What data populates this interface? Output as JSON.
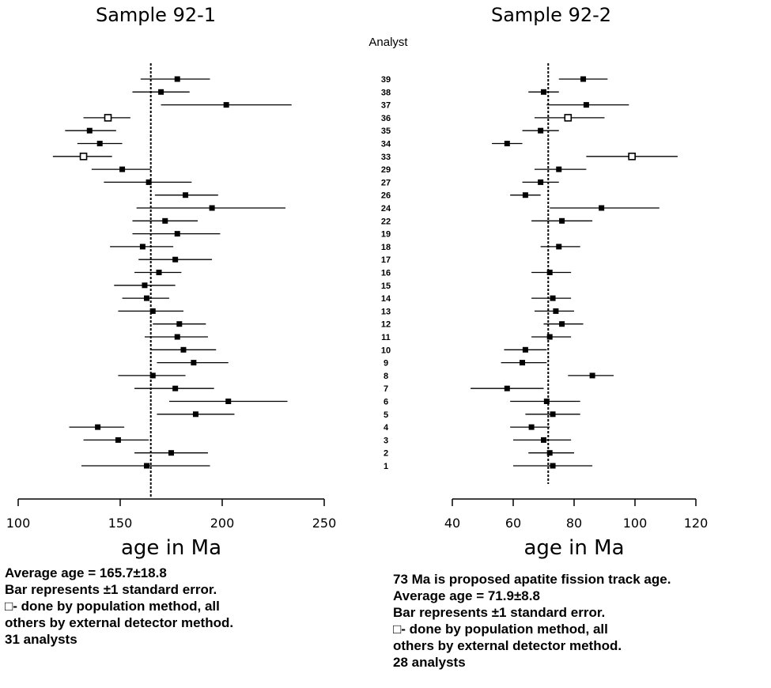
{
  "chart_data": [
    {
      "type": "scatter",
      "title": "Sample 92-1",
      "xlabel": "age in Ma",
      "xlim": [
        100,
        250
      ],
      "xticks": [
        "100",
        "150",
        "200",
        "250"
      ],
      "reference_line": 165,
      "points": [
        {
          "analyst": "39",
          "x": 178,
          "low": 160,
          "high": 194,
          "method": "external"
        },
        {
          "analyst": "38",
          "x": 170,
          "low": 156,
          "high": 184,
          "method": "external"
        },
        {
          "analyst": "37",
          "x": 202,
          "low": 170,
          "high": 234,
          "method": "external"
        },
        {
          "analyst": "36",
          "x": 144,
          "low": 132,
          "high": 155,
          "method": "population"
        },
        {
          "analyst": "35",
          "x": 135,
          "low": 123,
          "high": 148,
          "method": "external"
        },
        {
          "analyst": "34",
          "x": 140,
          "low": 129,
          "high": 151,
          "method": "external"
        },
        {
          "analyst": "33",
          "x": 132,
          "low": 117,
          "high": 146,
          "method": "population"
        },
        {
          "analyst": "29",
          "x": 151,
          "low": 136,
          "high": 165,
          "method": "external"
        },
        {
          "analyst": "27",
          "x": 164,
          "low": 142,
          "high": 185,
          "method": "external"
        },
        {
          "analyst": "26",
          "x": 182,
          "low": 167,
          "high": 198,
          "method": "external"
        },
        {
          "analyst": "24",
          "x": 195,
          "low": 158,
          "high": 231,
          "method": "external"
        },
        {
          "analyst": "22",
          "x": 172,
          "low": 156,
          "high": 188,
          "method": "external"
        },
        {
          "analyst": "19",
          "x": 178,
          "low": 156,
          "high": 199,
          "method": "external"
        },
        {
          "analyst": "18",
          "x": 161,
          "low": 145,
          "high": 176,
          "method": "external"
        },
        {
          "analyst": "17",
          "x": 177,
          "low": 159,
          "high": 195,
          "method": "external"
        },
        {
          "analyst": "16",
          "x": 169,
          "low": 157,
          "high": 180,
          "method": "external"
        },
        {
          "analyst": "15",
          "x": 162,
          "low": 147,
          "high": 177,
          "method": "external"
        },
        {
          "analyst": "14",
          "x": 163,
          "low": 151,
          "high": 174,
          "method": "external"
        },
        {
          "analyst": "13",
          "x": 166,
          "low": 149,
          "high": 181,
          "method": "external"
        },
        {
          "analyst": "12",
          "x": 179,
          "low": 166,
          "high": 192,
          "method": "external"
        },
        {
          "analyst": "11",
          "x": 178,
          "low": 162,
          "high": 193,
          "method": "external"
        },
        {
          "analyst": "10",
          "x": 181,
          "low": 165,
          "high": 197,
          "method": "external"
        },
        {
          "analyst": "9",
          "x": 186,
          "low": 168,
          "high": 203,
          "method": "external"
        },
        {
          "analyst": "8",
          "x": 166,
          "low": 149,
          "high": 182,
          "method": "external"
        },
        {
          "analyst": "7",
          "x": 177,
          "low": 157,
          "high": 196,
          "method": "external"
        },
        {
          "analyst": "6",
          "x": 203,
          "low": 174,
          "high": 232,
          "method": "external"
        },
        {
          "analyst": "5",
          "x": 187,
          "low": 168,
          "high": 206,
          "method": "external"
        },
        {
          "analyst": "4",
          "x": 139,
          "low": 125,
          "high": 152,
          "method": "external"
        },
        {
          "analyst": "3",
          "x": 149,
          "low": 132,
          "high": 164,
          "method": "external"
        },
        {
          "analyst": "2",
          "x": 175,
          "low": 157,
          "high": 193,
          "method": "external"
        },
        {
          "analyst": "1",
          "x": 163,
          "low": 131,
          "high": 194,
          "method": "external"
        }
      ]
    },
    {
      "type": "scatter",
      "title": "Sample 92-2",
      "xlabel": "age in Ma",
      "xlim": [
        40,
        120
      ],
      "xticks": [
        "40",
        "60",
        "80",
        "100",
        "120"
      ],
      "reference_line": 71.5,
      "points": [
        {
          "analyst": "39",
          "x": 83,
          "low": 75,
          "high": 91,
          "method": "external"
        },
        {
          "analyst": "38",
          "x": 70,
          "low": 65,
          "high": 75,
          "method": "external"
        },
        {
          "analyst": "37",
          "x": 84,
          "low": 71,
          "high": 98,
          "method": "external"
        },
        {
          "analyst": "36",
          "x": 78,
          "low": 67,
          "high": 90,
          "method": "population"
        },
        {
          "analyst": "35",
          "x": 69,
          "low": 63,
          "high": 75,
          "method": "external"
        },
        {
          "analyst": "34",
          "x": 58,
          "low": 53,
          "high": 63,
          "method": "external"
        },
        {
          "analyst": "33",
          "x": 99,
          "low": 84,
          "high": 114,
          "method": "population"
        },
        {
          "analyst": "29",
          "x": 75,
          "low": 67,
          "high": 84,
          "method": "external"
        },
        {
          "analyst": "27",
          "x": 69,
          "low": 63,
          "high": 75,
          "method": "external"
        },
        {
          "analyst": "26",
          "x": 64,
          "low": 59,
          "high": 69,
          "method": "external"
        },
        {
          "analyst": "24",
          "x": 89,
          "low": 72,
          "high": 108,
          "method": "external"
        },
        {
          "analyst": "22",
          "x": 76,
          "low": 66,
          "high": 86,
          "method": "external"
        },
        {
          "analyst": "18",
          "x": 75,
          "low": 69,
          "high": 82,
          "method": "external"
        },
        {
          "analyst": "16",
          "x": 72,
          "low": 66,
          "high": 79,
          "method": "external"
        },
        {
          "analyst": "14",
          "x": 73,
          "low": 66,
          "high": 79,
          "method": "external"
        },
        {
          "analyst": "13",
          "x": 74,
          "low": 67,
          "high": 80,
          "method": "external"
        },
        {
          "analyst": "12",
          "x": 76,
          "low": 70,
          "high": 83,
          "method": "external"
        },
        {
          "analyst": "11",
          "x": 72,
          "low": 66,
          "high": 79,
          "method": "external"
        },
        {
          "analyst": "10",
          "x": 64,
          "low": 57,
          "high": 71,
          "method": "external"
        },
        {
          "analyst": "9",
          "x": 63,
          "low": 56,
          "high": 71,
          "method": "external"
        },
        {
          "analyst": "8",
          "x": 86,
          "low": 78,
          "high": 93,
          "method": "external"
        },
        {
          "analyst": "7",
          "x": 58,
          "low": 46,
          "high": 70,
          "method": "external"
        },
        {
          "analyst": "6",
          "x": 71,
          "low": 59,
          "high": 82,
          "method": "external"
        },
        {
          "analyst": "5",
          "x": 73,
          "low": 64,
          "high": 82,
          "method": "external"
        },
        {
          "analyst": "4",
          "x": 66,
          "low": 59,
          "high": 72,
          "method": "external"
        },
        {
          "analyst": "3",
          "x": 70,
          "low": 60,
          "high": 79,
          "method": "external"
        },
        {
          "analyst": "2",
          "x": 72,
          "low": 65,
          "high": 80,
          "method": "external"
        },
        {
          "analyst": "1",
          "x": 73,
          "low": 60,
          "high": 86,
          "method": "external"
        }
      ]
    }
  ],
  "analyst_header": "Analyst",
  "analyst_ids": [
    "39",
    "38",
    "37",
    "36",
    "35",
    "34",
    "33",
    "29",
    "27",
    "26",
    "24",
    "22",
    "19",
    "18",
    "17",
    "16",
    "15",
    "14",
    "13",
    "12",
    "11",
    "10",
    "9",
    "8",
    "7",
    "6",
    "5",
    "4",
    "3",
    "2",
    "1"
  ],
  "notes_left": [
    "Average age = 165.7±18.8",
    "Bar represents ±1 standard error.",
    "□- done by population method, all",
    "others by external detector method.",
    "31 analysts"
  ],
  "notes_right": [
    "73 Ma is proposed apatite fission track age.",
    "Average age = 71.9±8.8",
    "Bar represents ±1 standard error.",
    "□- done by population method, all",
    "others by external detector method.",
    "28 analysts"
  ]
}
